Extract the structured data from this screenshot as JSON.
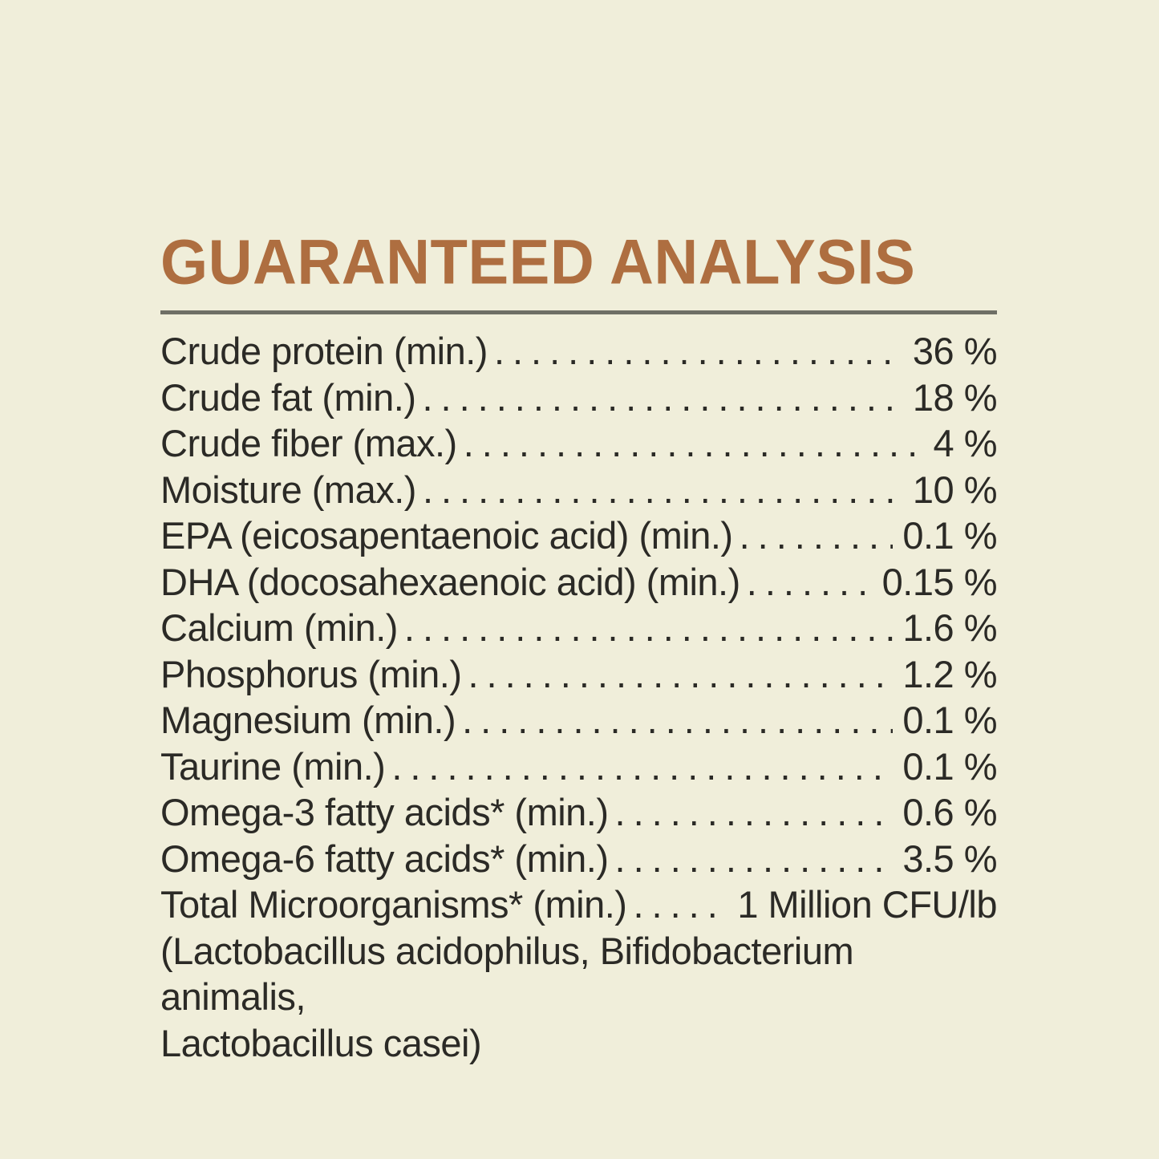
{
  "label": {
    "title": "GUARANTEED ANALYSIS",
    "rows": [
      {
        "label": "Crude protein (min.)",
        "value": "36 %"
      },
      {
        "label": "Crude fat (min.)",
        "value": "18 %"
      },
      {
        "label": "Crude fiber (max.)",
        "value": "4 %"
      },
      {
        "label": "Moisture (max.)",
        "value": "10 %"
      },
      {
        "label": "EPA (eicosapentaenoic acid) (min.)",
        "value": "0.1 %"
      },
      {
        "label": "DHA (docosahexaenoic acid) (min.)",
        "value": "0.15 %"
      },
      {
        "label": "Calcium (min.)",
        "value": "1.6 %"
      },
      {
        "label": "Phosphorus (min.)",
        "value": "1.2 %"
      },
      {
        "label": "Magnesium (min.)",
        "value": "0.1 %"
      },
      {
        "label": "Taurine (min.)",
        "value": "0.1 %"
      },
      {
        "label": "Omega-3 fatty acids* (min.)",
        "value": "0.6 %"
      },
      {
        "label": "Omega-6 fatty acids* (min.)",
        "value": "3.5 %"
      },
      {
        "label": "Total Microorganisms* (min.)",
        "value": "1 Million CFU/lb"
      }
    ],
    "footnote_lines": [
      "(Lactobacillus acidophilus, Bifidobacterium animalis,",
      "Lactobacillus casei)"
    ]
  },
  "colors": {
    "background": "#f0eeda",
    "text": "#2b2a26",
    "heading": "#ae6e40",
    "rule": "#6f6f66"
  }
}
